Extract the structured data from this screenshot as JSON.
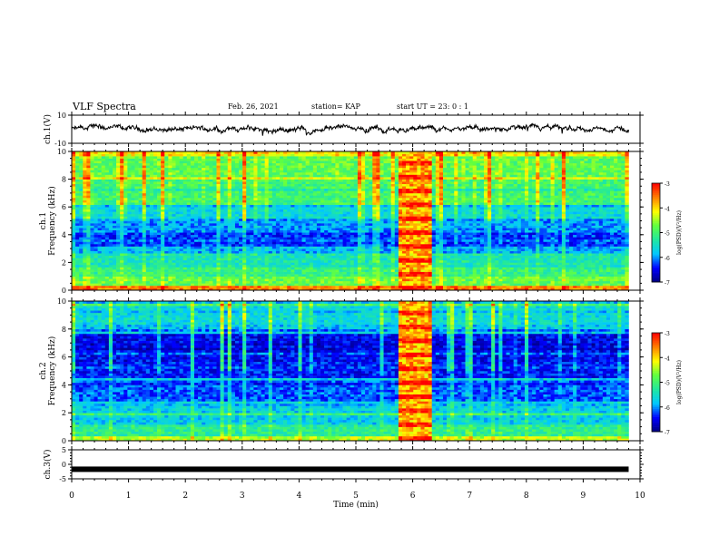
{
  "header": {
    "title": "VLF Spectra",
    "date": "Feb. 26, 2021",
    "station": "station= KAP",
    "start": "start  UT  =   23: 0   : 1"
  },
  "chart_data": [
    {
      "type": "line",
      "panel": "ch1-waveform",
      "ylabel": "ch.1(V)",
      "ylim": [
        -10,
        10
      ],
      "yticks": [
        "10",
        "-10"
      ],
      "xlim": [
        0,
        10
      ],
      "trace_range_min": [
        0,
        9.8
      ],
      "series": [
        {
          "style": "noisy waveform",
          "approx_mean": 0,
          "approx_range": [
            -5,
            4
          ]
        }
      ]
    },
    {
      "type": "heatmap",
      "panel": "ch1-spectrogram",
      "ylabel": "ch.1\nFrequency (kHz)",
      "ylim": [
        0,
        10
      ],
      "yticks": [
        "0",
        "2",
        "4",
        "6",
        "8",
        "10"
      ],
      "xlim": [
        0,
        10
      ],
      "data_extent_min": [
        0,
        9.8
      ],
      "colorbar": {
        "label": "log(PSD)(V²/Hz)",
        "range": [
          -7,
          -3
        ],
        "ticks": [
          "-3",
          "-4",
          "-5",
          "-6",
          "-7"
        ],
        "colors": [
          "#00007f",
          "#0000ff",
          "#00c8ff",
          "#20e8a0",
          "#60ff40",
          "#ffff00",
          "#ff8000",
          "#ff0000",
          "#ffffff"
        ]
      },
      "bands": [
        {
          "khz": [
            0,
            0.3
          ],
          "level": -3.6
        },
        {
          "khz": [
            0.3,
            1.0
          ],
          "level": -4.8
        },
        {
          "khz": [
            1.0,
            1.6
          ],
          "level": -5.1
        },
        {
          "khz": [
            1.6,
            2.6
          ],
          "level": -5.4
        },
        {
          "khz": [
            2.6,
            3.2
          ],
          "level": -5.9
        },
        {
          "khz": [
            3.2,
            4.2
          ],
          "level": -6.3
        },
        {
          "khz": [
            4.2,
            5.2
          ],
          "level": -6.0
        },
        {
          "khz": [
            5.2,
            6.2
          ],
          "level": -5.6
        },
        {
          "khz": [
            6.2,
            8.2
          ],
          "level": -5.0
        },
        {
          "khz": [
            8.2,
            10
          ],
          "level": -4.8
        }
      ],
      "burst": {
        "min": [
          5.73,
          6.33
        ],
        "level": -3.8
      }
    },
    {
      "type": "heatmap",
      "panel": "ch2-spectrogram",
      "ylabel": "ch.2\nFrequency (kHz)",
      "ylim": [
        0,
        10
      ],
      "yticks": [
        "0",
        "2",
        "4",
        "6",
        "8",
        "10"
      ],
      "xlim": [
        0,
        10
      ],
      "data_extent_min": [
        0,
        9.8
      ],
      "colorbar": {
        "label": "log(PSD)(V²/Hz)",
        "range": [
          -7,
          -3
        ],
        "ticks": [
          "-3",
          "-4",
          "-5",
          "-6",
          "-7"
        ]
      },
      "bands": [
        {
          "khz": [
            0,
            0.4
          ],
          "level": -4.4
        },
        {
          "khz": [
            0.4,
            1.2
          ],
          "level": -5.2
        },
        {
          "khz": [
            1.2,
            2.8
          ],
          "level": -5.7
        },
        {
          "khz": [
            2.8,
            4.0
          ],
          "level": -6.2
        },
        {
          "khz": [
            4.0,
            5.6
          ],
          "level": -6.4
        },
        {
          "khz": [
            5.6,
            7.6
          ],
          "level": -6.5
        },
        {
          "khz": [
            7.6,
            8.4
          ],
          "level": -5.8
        },
        {
          "khz": [
            8.4,
            10
          ],
          "level": -5.6
        }
      ],
      "burst": {
        "min": [
          5.73,
          6.33
        ],
        "level": -3.8
      }
    },
    {
      "type": "line",
      "panel": "ch3-waveform",
      "ylabel": "ch.3(V)",
      "ylim": [
        -5,
        5
      ],
      "yticks": [
        "5",
        "0",
        "-5"
      ],
      "xlim": [
        0,
        10
      ],
      "xlabel": "Time  (min)",
      "xticks": [
        "0",
        "1",
        "2",
        "3",
        "4",
        "5",
        "6",
        "7",
        "8",
        "9",
        "10"
      ],
      "series": [
        {
          "style": "thick flat trace",
          "approx_level": -1.7,
          "extent_min": [
            0,
            9.8
          ]
        }
      ]
    }
  ]
}
